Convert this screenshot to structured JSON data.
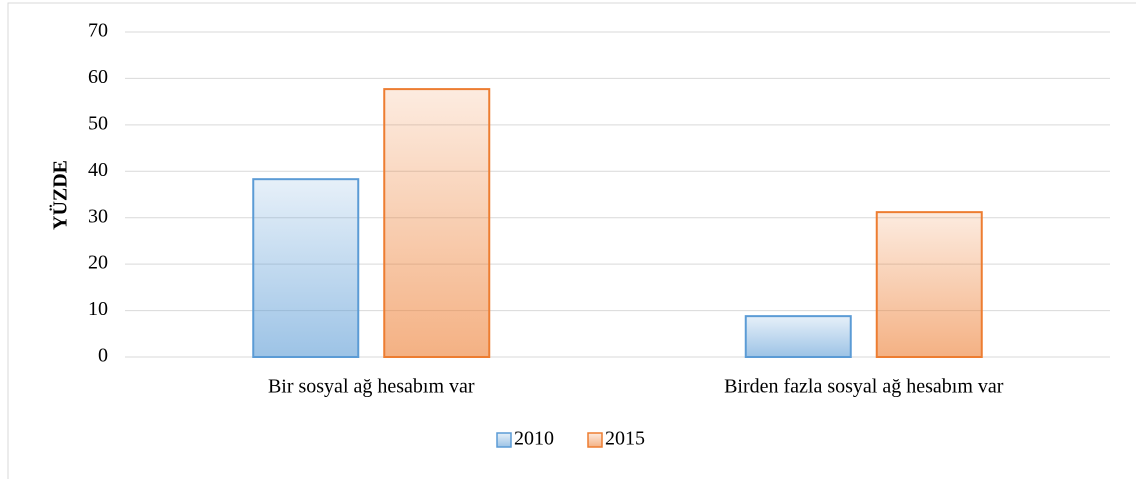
{
  "chart_data": {
    "type": "bar",
    "y_label": "YÜZDE",
    "categories": [
      "Bir sosyal ağ hesabım var",
      "Birden fazla sosyal ağ hesabım var"
    ],
    "series": [
      {
        "name": "2010",
        "color": "#5b9bd5",
        "values": [
          38.3,
          8.8
        ]
      },
      {
        "name": "2015",
        "color": "#ed7d31",
        "values": [
          57.7,
          31.2
        ]
      }
    ],
    "ylim": [
      0,
      70
    ],
    "yticks": [
      0,
      10,
      20,
      30,
      40,
      50,
      60,
      70
    ],
    "grid": true,
    "legend": "bottom"
  }
}
